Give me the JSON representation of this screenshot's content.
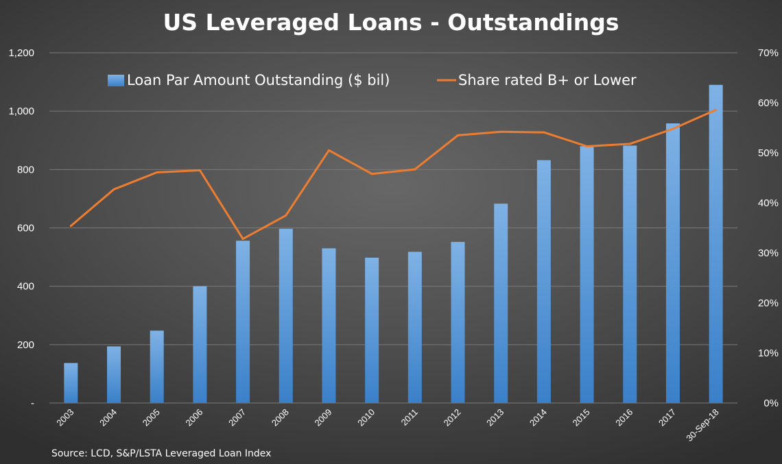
{
  "chart_data": {
    "type": "bar+line",
    "title": "US Leveraged Loans - Outstandings",
    "categories": [
      "2003",
      "2004",
      "2005",
      "2006",
      "2007",
      "2008",
      "2009",
      "2010",
      "2011",
      "2012",
      "2013",
      "2014",
      "2015",
      "2016",
      "2017",
      "30-Sep-18"
    ],
    "series": [
      {
        "name": "Loan Par Amount Outstanding ($ bil)",
        "type": "bar",
        "axis": "left",
        "color": "#5b9bd5",
        "values": [
          137,
          194,
          248,
          400,
          556,
          597,
          530,
          498,
          518,
          552,
          683,
          832,
          880,
          882,
          958,
          1090
        ]
      },
      {
        "name": "Share rated B+ or Lower",
        "type": "line",
        "axis": "right",
        "color": "#ed7d31",
        "values": [
          0.354,
          0.427,
          0.461,
          0.465,
          0.328,
          0.375,
          0.505,
          0.458,
          0.467,
          0.535,
          0.542,
          0.541,
          0.513,
          0.518,
          0.548,
          0.586
        ]
      }
    ],
    "y_left": {
      "min": 0,
      "max": 1200,
      "ticks": [
        {
          "value": 0,
          "label": "-"
        },
        {
          "value": 200,
          "label": "200"
        },
        {
          "value": 400,
          "label": "400"
        },
        {
          "value": 600,
          "label": "600"
        },
        {
          "value": 800,
          "label": "800"
        },
        {
          "value": 1000,
          "label": "1,000"
        },
        {
          "value": 1200,
          "label": "1,200"
        }
      ]
    },
    "y_right": {
      "min": 0,
      "max": 0.7,
      "ticks": [
        {
          "value": 0,
          "label": "0%"
        },
        {
          "value": 0.1,
          "label": "10%"
        },
        {
          "value": 0.2,
          "label": "20%"
        },
        {
          "value": 0.3,
          "label": "30%"
        },
        {
          "value": 0.4,
          "label": "40%"
        },
        {
          "value": 0.5,
          "label": "50%"
        },
        {
          "value": 0.6,
          "label": "60%"
        },
        {
          "value": 0.7,
          "label": "70%"
        }
      ]
    },
    "grid": true,
    "legend_position": "top",
    "source": "Source: LCD, S&P/LSTA Leveraged Loan Index"
  }
}
